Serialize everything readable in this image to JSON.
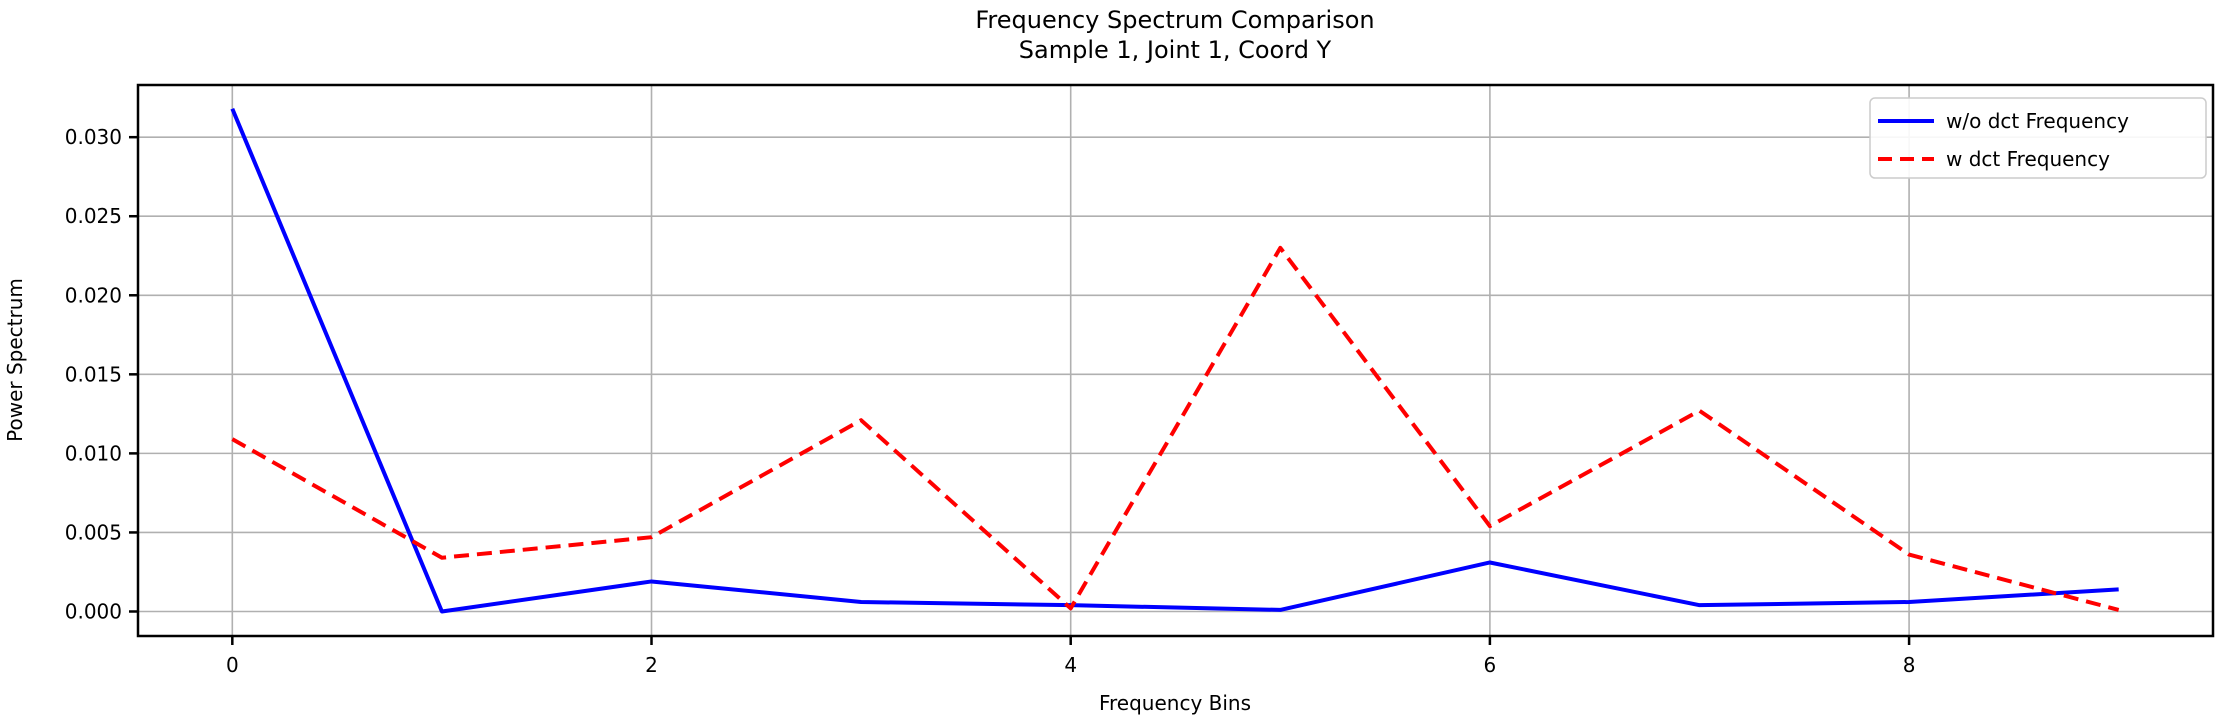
{
  "chart_data": {
    "type": "line",
    "title": "Frequency Spectrum Comparison",
    "subtitle": "Sample 1, Joint 1, Coord Y",
    "xlabel": "Frequency Bins",
    "ylabel": "Power Spectrum",
    "x": [
      0,
      1,
      2,
      3,
      4,
      5,
      6,
      7,
      8,
      9
    ],
    "series": [
      {
        "name": "w/o dct Frequency",
        "color": "#0000ff",
        "style": "solid",
        "values": [
          0.0318,
          0.0,
          0.0019,
          0.0006,
          0.0004,
          0.0001,
          0.0031,
          0.0004,
          0.0006,
          0.0014
        ]
      },
      {
        "name": "w dct Frequency",
        "color": "#ff0000",
        "style": "dashed",
        "values": [
          0.0109,
          0.0034,
          0.0047,
          0.0121,
          0.0002,
          0.023,
          0.0054,
          0.0127,
          0.0036,
          0.0001
        ]
      }
    ],
    "xticks": [
      0,
      2,
      4,
      6,
      8
    ],
    "ytick_labels": [
      "0.000",
      "0.005",
      "0.010",
      "0.015",
      "0.020",
      "0.025",
      "0.030"
    ],
    "ytick_values": [
      0.0,
      0.005,
      0.01,
      0.015,
      0.02,
      0.025,
      0.03
    ],
    "xlim": [
      -0.45,
      9.45
    ],
    "ylim": [
      -0.00155,
      0.0333
    ],
    "grid": true,
    "legend_position": "upper right"
  },
  "colors": {
    "grid": "#b0b0b0",
    "spine": "#000000",
    "text": "#000000",
    "background": "#ffffff",
    "legend_border": "#cccccc"
  }
}
